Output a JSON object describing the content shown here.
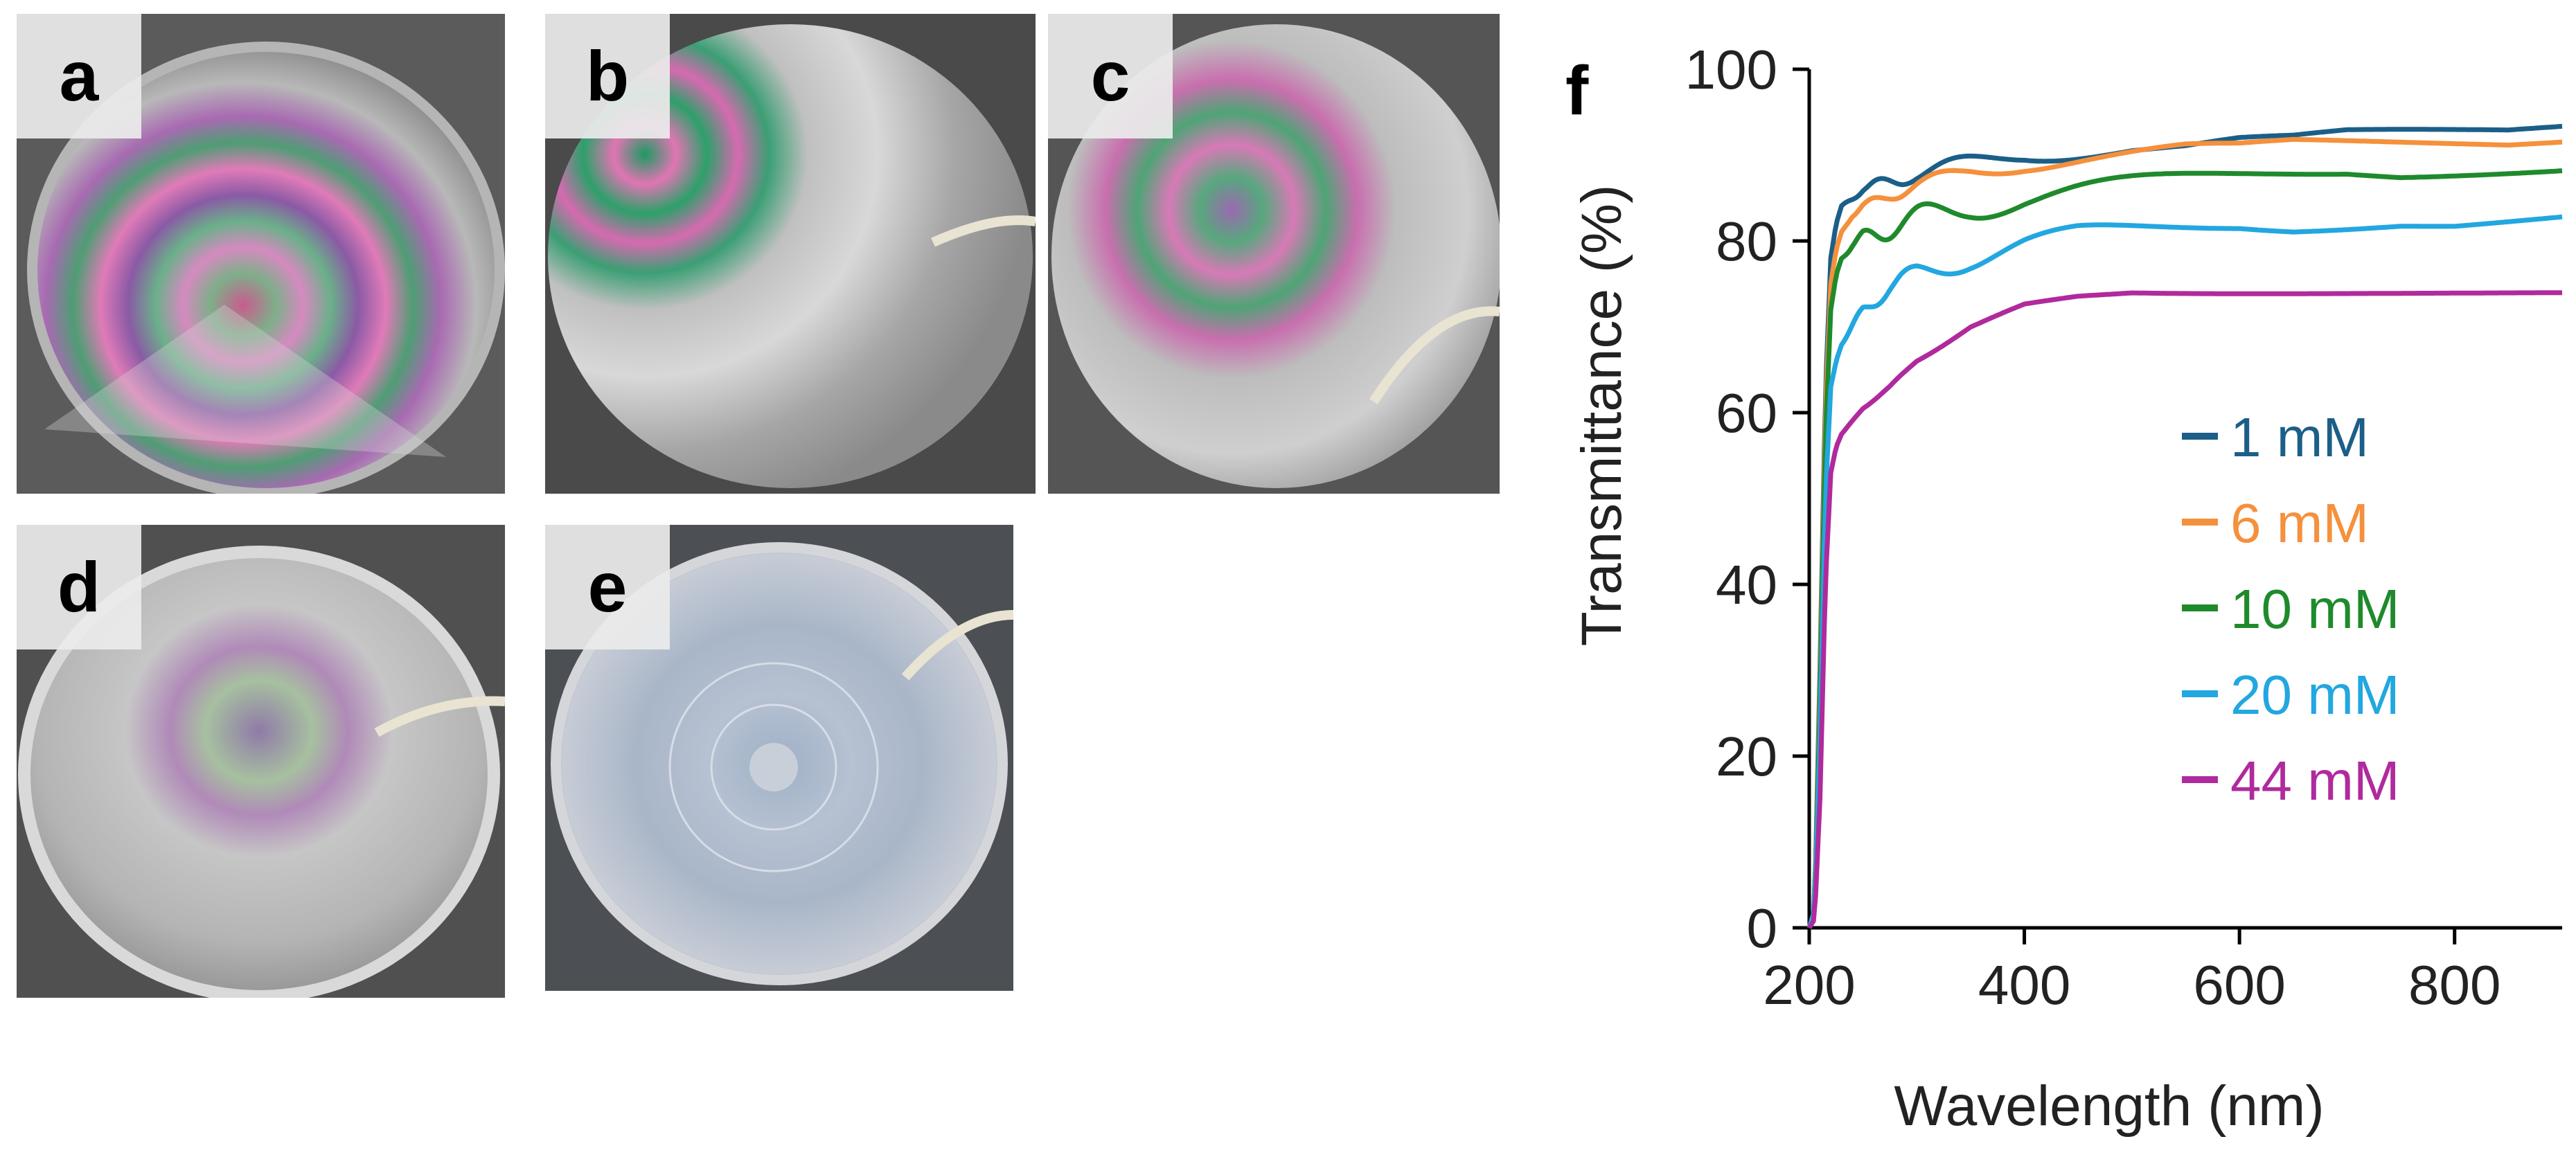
{
  "figure": {
    "panels": [
      {
        "letter": "a"
      },
      {
        "letter": "b"
      },
      {
        "letter": "c"
      },
      {
        "letter": "d"
      },
      {
        "letter": "e"
      }
    ]
  },
  "chart_data": {
    "panel_label": "f",
    "type": "line",
    "xlabel": "Wavelength (nm)",
    "ylabel": "Transmittance (%)",
    "xlim": [
      200,
      900
    ],
    "ylim": [
      0,
      100
    ],
    "x_ticks": [
      200,
      400,
      600,
      800
    ],
    "y_ticks": [
      0,
      20,
      40,
      60,
      80,
      100
    ],
    "grid": false,
    "legend_position": "bottom-right",
    "series": [
      {
        "name": "1 mM",
        "color": "#1b5f88",
        "x": [
          200,
          205,
          210,
          215,
          220,
          225,
          230,
          240,
          250,
          275,
          300,
          350,
          400,
          450,
          500,
          550,
          600,
          650,
          700,
          750,
          800,
          850,
          900
        ],
        "y": [
          0,
          2,
          30,
          62,
          78,
          82,
          84,
          85,
          86,
          87,
          88,
          89,
          90,
          90.5,
          91,
          91,
          91.5,
          91.5,
          92,
          92,
          92,
          92,
          92.5
        ],
        "ripple": 1.0
      },
      {
        "name": "6 mM",
        "color": "#f5903c",
        "x": [
          200,
          205,
          210,
          215,
          220,
          225,
          230,
          240,
          250,
          275,
          300,
          350,
          400,
          450,
          500,
          550,
          600,
          650,
          700,
          750,
          800,
          850,
          900
        ],
        "y": [
          0,
          2,
          28,
          60,
          75,
          79,
          81,
          83,
          84,
          85.5,
          86.5,
          88,
          89,
          89.5,
          90,
          90.5,
          90.5,
          91,
          91,
          91,
          91,
          91,
          91.5
        ],
        "ripple": 0.9
      },
      {
        "name": "10 mM",
        "color": "#1f8a2c",
        "x": [
          200,
          205,
          210,
          215,
          220,
          225,
          230,
          240,
          250,
          275,
          300,
          350,
          400,
          450,
          500,
          550,
          600,
          650,
          700,
          750,
          800,
          850,
          900
        ],
        "y": [
          0,
          2,
          26,
          57,
          72,
          76,
          78,
          79.5,
          80.5,
          81.5,
          82.5,
          84,
          85,
          85.5,
          86,
          86.5,
          87,
          87.5,
          88,
          88,
          88.5,
          89,
          89.5
        ],
        "ripple": 1.6
      },
      {
        "name": "20 mM",
        "color": "#22a7e0",
        "x": [
          200,
          205,
          210,
          215,
          220,
          225,
          230,
          240,
          250,
          275,
          300,
          350,
          400,
          450,
          500,
          550,
          600,
          650,
          700,
          750,
          800,
          850,
          900
        ],
        "y": [
          0,
          2,
          22,
          50,
          63,
          66,
          68,
          70,
          72,
          74.5,
          76,
          78,
          79.5,
          80.5,
          81,
          81.5,
          82,
          82,
          82.5,
          83,
          83,
          83.5,
          84
        ],
        "ripple": 1.3
      },
      {
        "name": "44 mM",
        "color": "#b02a9d",
        "x": [
          200,
          205,
          210,
          215,
          220,
          225,
          230,
          240,
          250,
          275,
          300,
          350,
          400,
          450,
          500,
          550,
          600,
          650,
          700,
          750,
          800,
          850,
          900
        ],
        "y": [
          0,
          1,
          15,
          40,
          53,
          56,
          57.5,
          59,
          60.5,
          63,
          66,
          70,
          72.5,
          73.5,
          74,
          74,
          74,
          74,
          74,
          74,
          74,
          74,
          74
        ],
        "ripple": 0.15
      }
    ]
  }
}
